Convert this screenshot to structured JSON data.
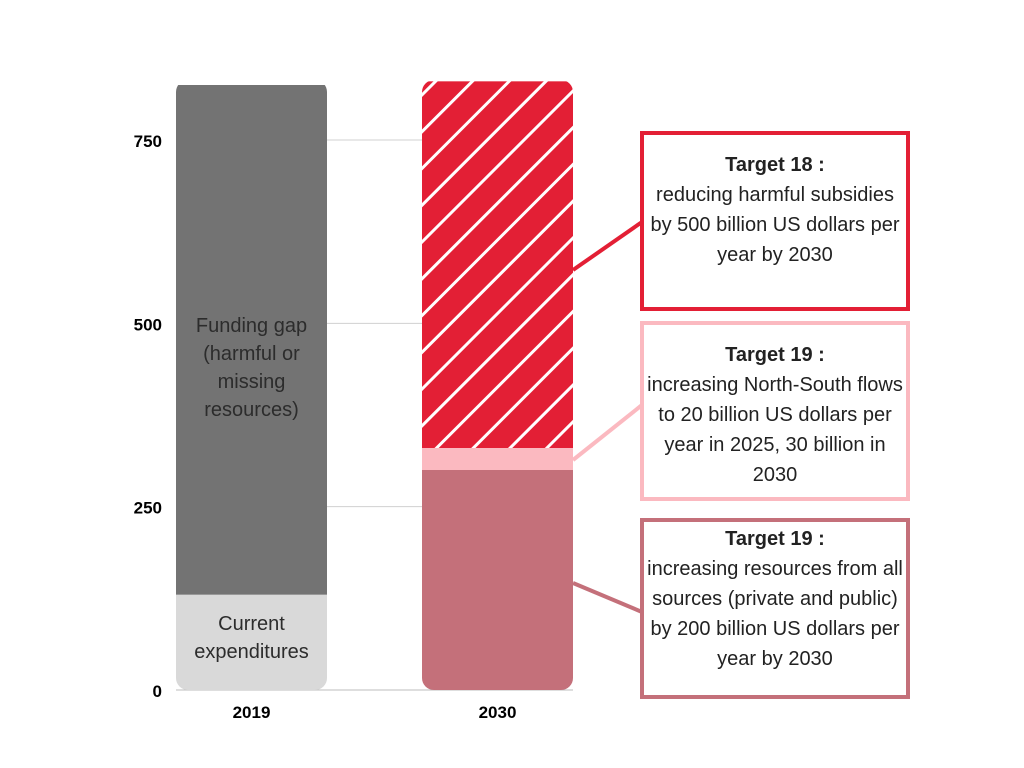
{
  "chart_data": {
    "type": "bar",
    "stacked": true,
    "categories": [
      "2019",
      "2030"
    ],
    "ylim": [
      0,
      820
    ],
    "yticks": [
      0,
      250,
      500,
      750
    ],
    "grid": true,
    "series": [
      {
        "category": "2019",
        "segments": [
          {
            "name": "Current expenditures",
            "from": 0,
            "to": 130,
            "color": "#d9d9d9"
          },
          {
            "name": "Funding gap (harmful or missing resources)",
            "from": 130,
            "to": 825,
            "color": "#737373"
          }
        ]
      },
      {
        "category": "2030",
        "segments": [
          {
            "from": 0,
            "to": 300,
            "color": "#c4707a"
          },
          {
            "from": 300,
            "to": 330,
            "color": "#fbb9c0"
          },
          {
            "from": 330,
            "to": 830,
            "color": "#e31f35",
            "pattern": "diagonal-hatch"
          }
        ]
      }
    ]
  },
  "labels": {
    "funding_gap": "Funding gap (harmful or missing resources)",
    "current": "Current expenditures"
  },
  "callouts": {
    "t18": {
      "title": "Target 18 :",
      "text": "reducing harmful subsidies by 500 billion US dollars per year by 2030",
      "color": "#e31f35"
    },
    "t19a": {
      "title": "Target 19 :",
      "text": "increasing North-South flows to 20 billion US dollars per year in 2025, 30 billion in 2030",
      "color": "#fbb9c0"
    },
    "t19b": {
      "title": "Target 19 :",
      "text": "increasing resources from all sources (private and public) by 200 billion US dollars per year by 2030",
      "color": "#c4707a"
    }
  }
}
